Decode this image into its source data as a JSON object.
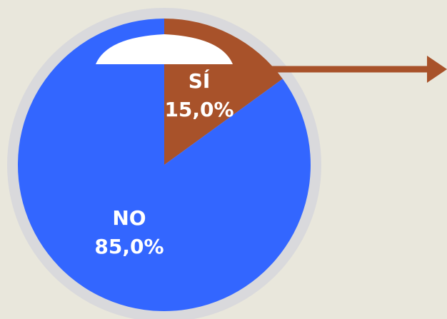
{
  "chart_data": {
    "type": "pie",
    "categories": [
      "SÍ",
      "NO"
    ],
    "values": [
      15.0,
      85.0
    ],
    "value_labels": [
      "15,0%",
      "85,0%"
    ],
    "colors": [
      "#a8522a",
      "#3366ff"
    ]
  }
}
